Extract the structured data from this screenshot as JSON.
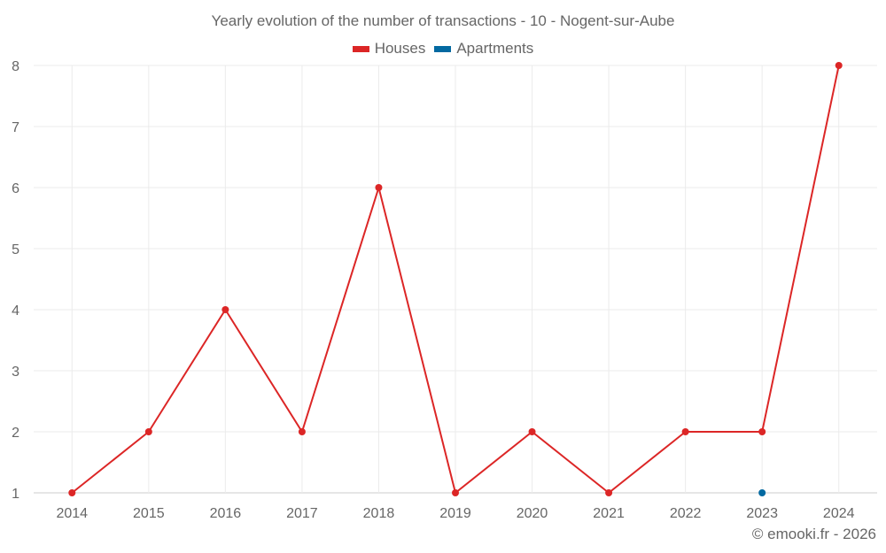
{
  "chart_data": {
    "type": "line",
    "title": "Yearly evolution of the number of transactions - 10 - Nogent-sur-Aube",
    "categories": [
      "2014",
      "2015",
      "2016",
      "2017",
      "2018",
      "2019",
      "2020",
      "2021",
      "2022",
      "2023",
      "2024"
    ],
    "series": [
      {
        "name": "Houses",
        "color": "#dc2626",
        "values": [
          1,
          2,
          4,
          2,
          6,
          1,
          2,
          1,
          2,
          2,
          8
        ]
      },
      {
        "name": "Apartments",
        "color": "#0369a1",
        "values": [
          null,
          null,
          null,
          null,
          null,
          null,
          null,
          null,
          null,
          1,
          null
        ]
      }
    ],
    "yticks": [
      1,
      2,
      3,
      4,
      5,
      6,
      7,
      8
    ],
    "ylim": [
      1,
      8
    ],
    "grid": true,
    "legend": "top-center"
  },
  "credit": "© emooki.fr - 2026"
}
